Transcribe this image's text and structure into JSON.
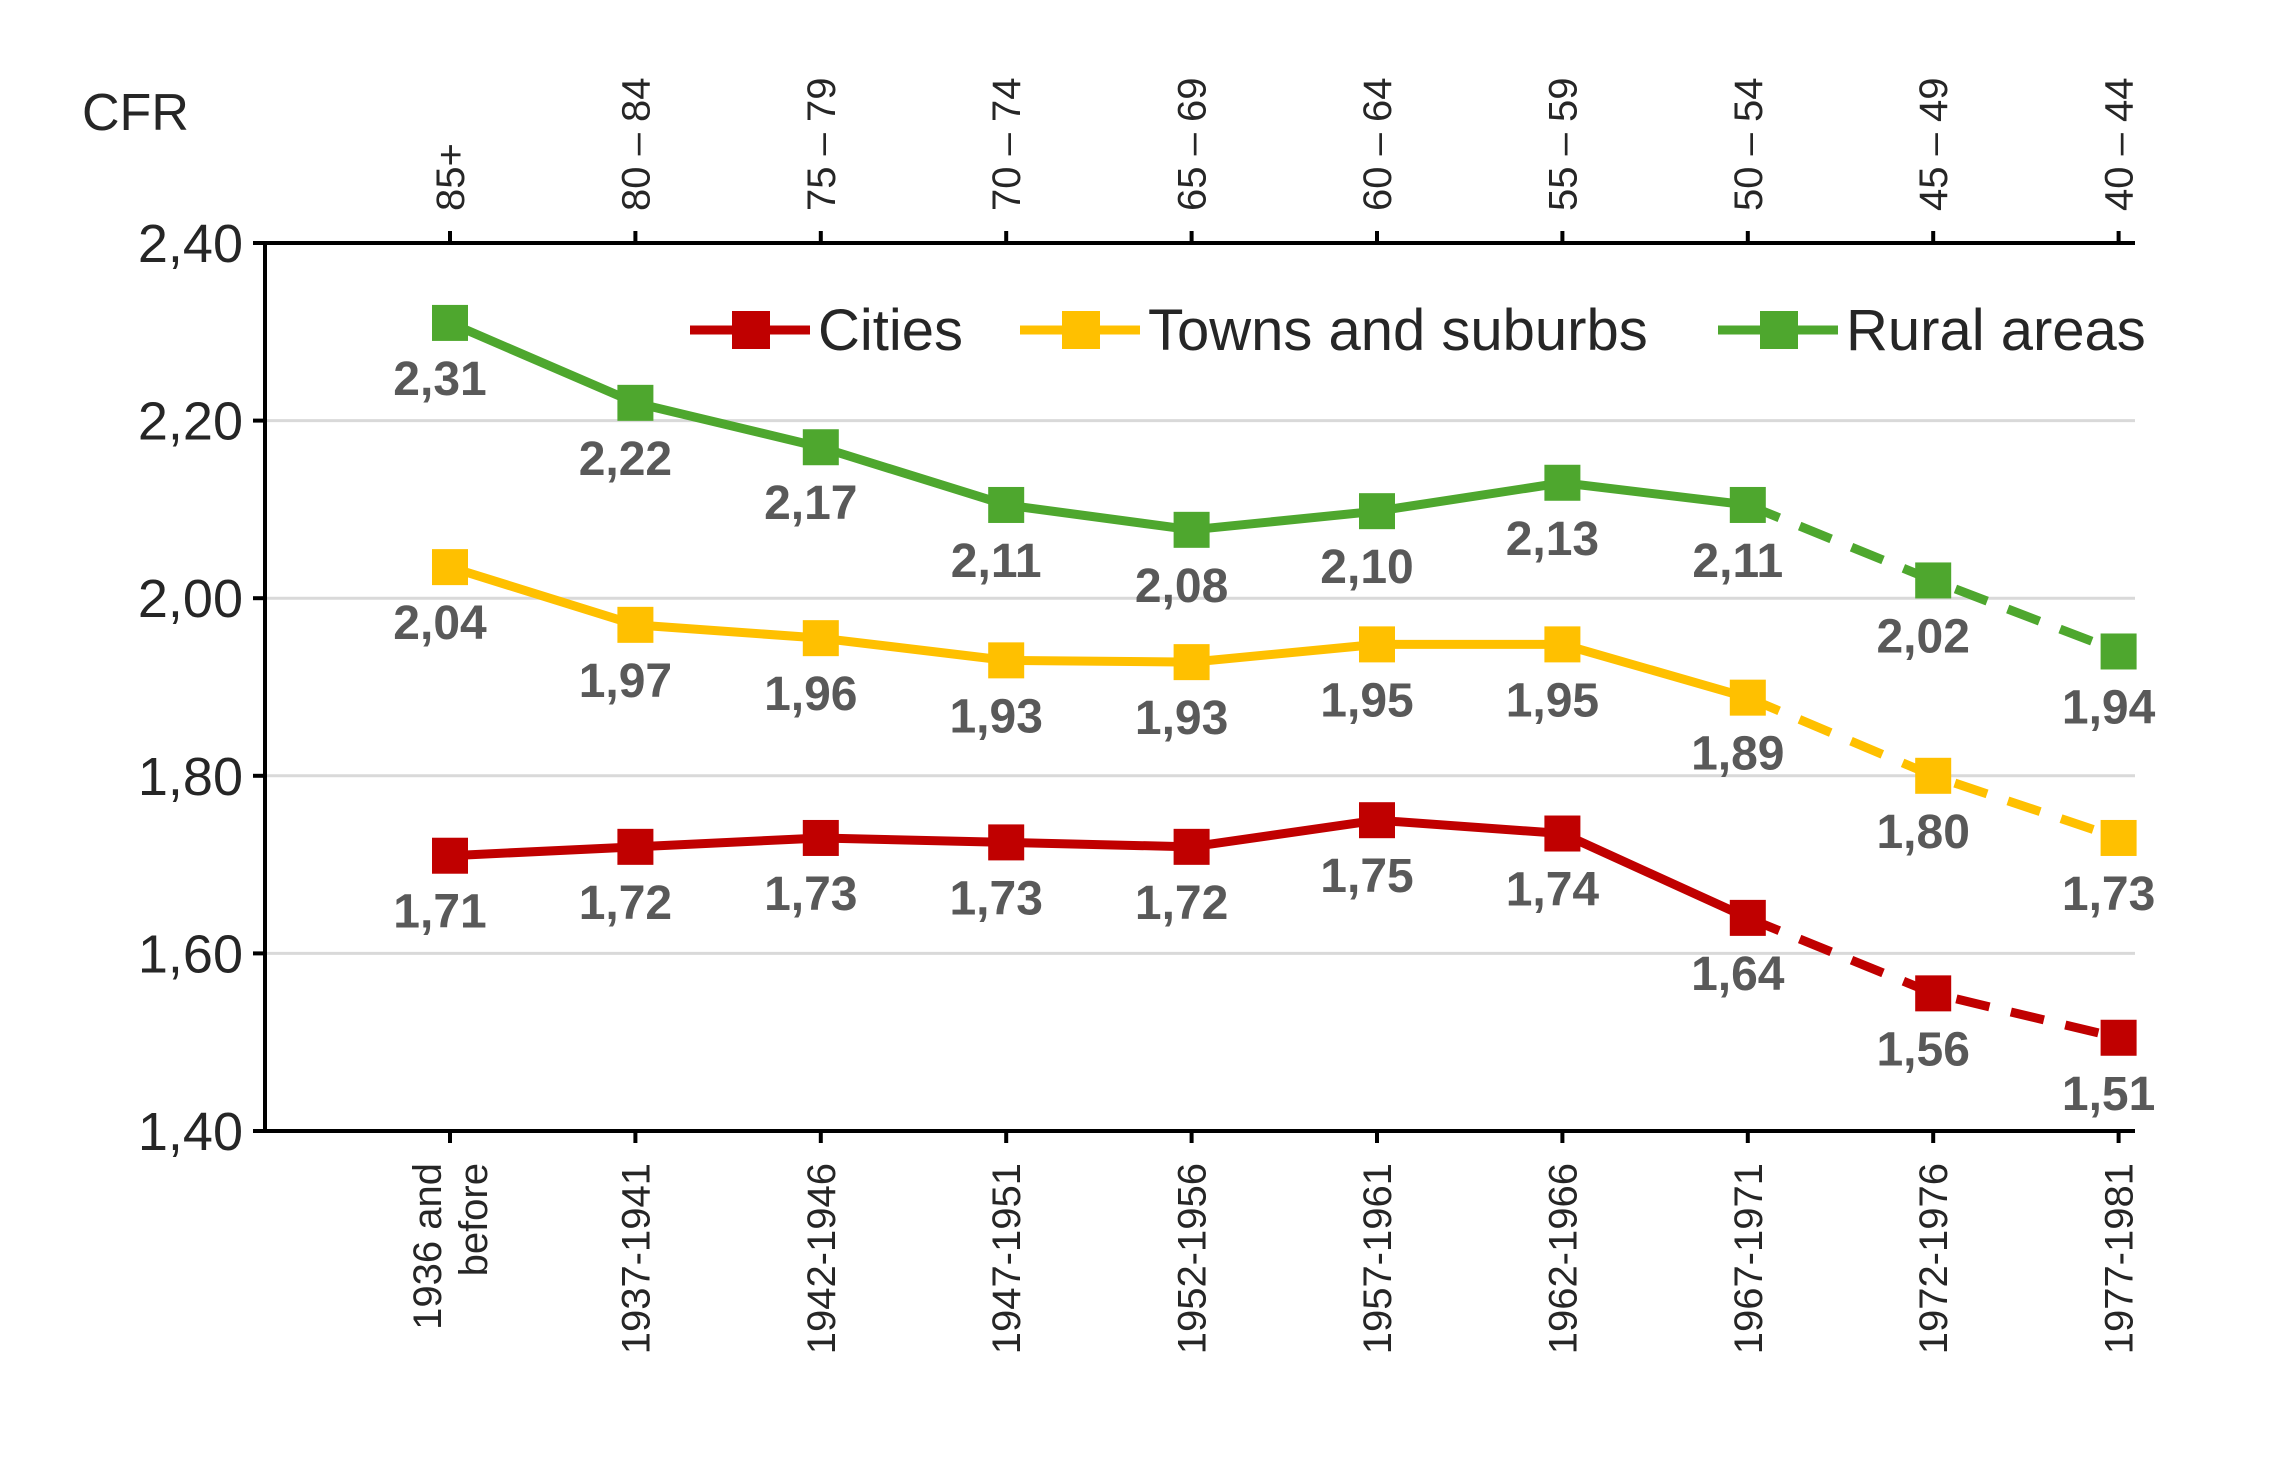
{
  "chart_data": {
    "type": "line",
    "ylabel": "CFR",
    "ylim": [
      1.4,
      2.4
    ],
    "yticks": [
      1.4,
      1.6,
      1.8,
      2.0,
      2.2,
      2.4
    ],
    "ytick_labels": [
      "1,40",
      "1,60",
      "1,80",
      "2,00",
      "2,20",
      "2,40"
    ],
    "grid": true,
    "legend_position": "top-right",
    "categories_bottom": [
      "1936 and before",
      "1937-1941",
      "1942-1946",
      "1947-1951",
      "1952-1956",
      "1957-1961",
      "1962-1966",
      "1967-1971",
      "1972-1976",
      "1977-1981"
    ],
    "categories_bottom_lines": [
      [
        "1936 and",
        "before"
      ],
      [
        "1937-1941"
      ],
      [
        "1942-1946"
      ],
      [
        "1947-1951"
      ],
      [
        "1952-1956"
      ],
      [
        "1957-1961"
      ],
      [
        "1962-1966"
      ],
      [
        "1967-1971"
      ],
      [
        "1972-1976"
      ],
      [
        "1977-1981"
      ]
    ],
    "categories_top": [
      "85+",
      "80 – 84",
      "75 – 79",
      "70 – 74",
      "65 – 69",
      "60 – 64",
      "55 – 59",
      "50 – 54",
      "45 – 49",
      "40 – 44"
    ],
    "projection_start_index": 7,
    "series": [
      {
        "name": "Cities",
        "color": "#C00000",
        "values": [
          1.71,
          1.72,
          1.73,
          1.725,
          1.72,
          1.75,
          1.735,
          1.64,
          1.555,
          1.505
        ],
        "labels": [
          "1,71",
          "1,72",
          "1,73",
          "1,73",
          "1,72",
          "1,75",
          "1,74",
          "1,64",
          "1,56",
          "1,51"
        ]
      },
      {
        "name": "Towns and suburbs",
        "color": "#FFC000",
        "values": [
          2.035,
          1.97,
          1.955,
          1.93,
          1.928,
          1.948,
          1.948,
          1.888,
          1.8,
          1.73
        ],
        "labels": [
          "2,04",
          "1,97",
          "1,96",
          "1,93",
          "1,93",
          "1,95",
          "1,95",
          "1,89",
          "1,80",
          "1,73"
        ]
      },
      {
        "name": "Rural areas",
        "color": "#4EA72E",
        "values": [
          2.31,
          2.22,
          2.17,
          2.105,
          2.077,
          2.098,
          2.13,
          2.105,
          2.02,
          1.94
        ],
        "labels": [
          "2,31",
          "2,22",
          "2,17",
          "2,11",
          "2,08",
          "2,10",
          "2,13",
          "2,11",
          "2,02",
          "1,94"
        ]
      }
    ]
  }
}
